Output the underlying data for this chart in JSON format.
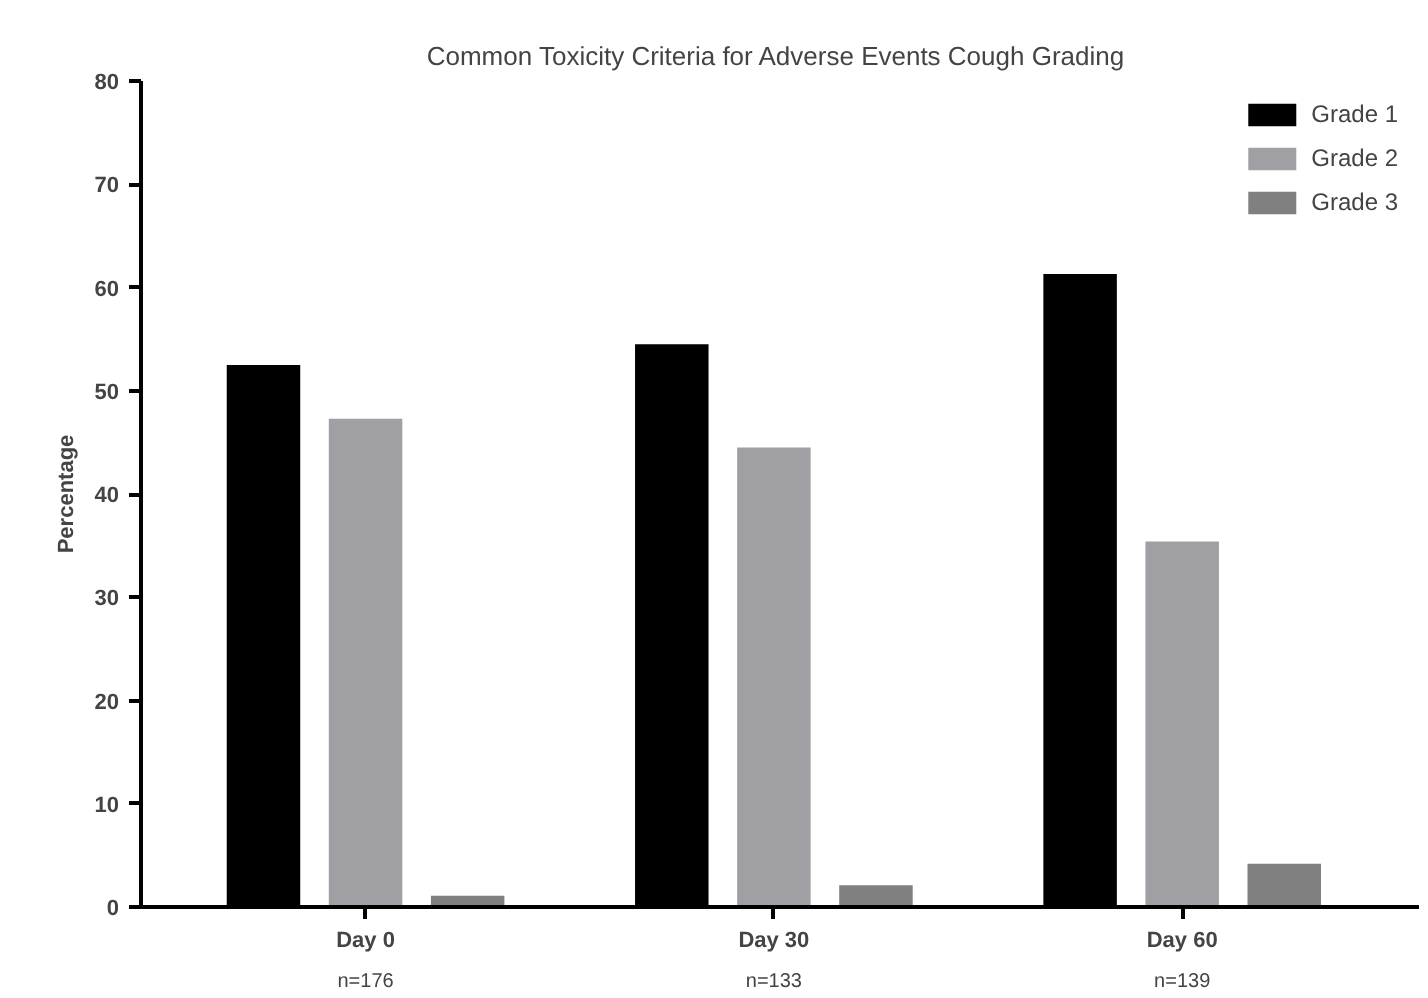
{
  "chart_data": {
    "type": "bar",
    "title": "Common Toxicity Criteria for Adverse Events  Cough Grading",
    "ylabel": "Percentage",
    "categories": [
      "Day 0",
      "Day 30",
      "Day 60"
    ],
    "series": [
      {
        "name": "Grade 1",
        "color": "#000000",
        "values": [
          52.5,
          54.5,
          61.3
        ]
      },
      {
        "name": "Grade 2",
        "color": "#a0a0a4",
        "values": [
          47.3,
          44.5,
          35.4
        ]
      },
      {
        "name": "Grade 3",
        "color": "#808080",
        "values": [
          1.1,
          2.1,
          4.2
        ]
      }
    ],
    "annotations": [
      "n=176",
      "n=133",
      "n=139"
    ],
    "ylim": [
      0,
      80
    ],
    "yticks": [
      0,
      10,
      20,
      30,
      40,
      50,
      60,
      70,
      80
    ],
    "legend": "top right",
    "grid": false
  }
}
